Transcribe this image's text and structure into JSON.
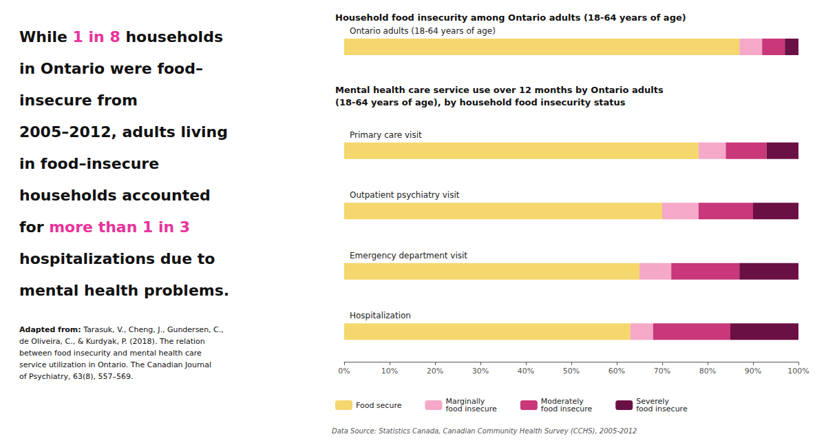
{
  "chart_data": {
    "type": "bar",
    "orientation": "horizontal",
    "stacked": true,
    "title": "Household food insecurity among Ontario adults (18-64 years of age)",
    "subtitle": "Mental health care service use over 12 months by Ontario adults\n(18-64 years of age), by household food insecurity status",
    "categories": [
      "Ontario adults (18-64 years of age)",
      "Primary care visit",
      "Outpatient psychiatry visit",
      "Emergency department visit",
      "Hospitalization"
    ],
    "series": [
      {
        "name": "Food secure",
        "color": "#F5D76E",
        "values": [
          87,
          78,
          70,
          65,
          63
        ]
      },
      {
        "name": "Marginally\nfood insecure",
        "color": "#F5A8C8",
        "values": [
          5,
          6,
          8,
          7,
          5
        ]
      },
      {
        "name": "Moderately\nfood insecure",
        "color": "#C8387A",
        "values": [
          5,
          9,
          12,
          15,
          17
        ]
      },
      {
        "name": "Severely\nfood insecure",
        "color": "#6B1045",
        "values": [
          3,
          7,
          10,
          13,
          15
        ]
      }
    ],
    "xlim": [
      0,
      100
    ],
    "xticks": [
      {
        "value": 0,
        "label": "0%"
      },
      {
        "value": 10,
        "label": "10%"
      },
      {
        "value": 20,
        "label": "20%"
      },
      {
        "value": 30,
        "label": "30%"
      },
      {
        "value": 40,
        "label": "40%"
      },
      {
        "value": 50,
        "label": "50%"
      },
      {
        "value": 60,
        "label": "60%"
      },
      {
        "value": 70,
        "label": "70%"
      },
      {
        "value": 80,
        "label": "80%"
      },
      {
        "value": 90,
        "label": "90%"
      },
      {
        "value": 100,
        "label": "100%"
      }
    ],
    "grid": false,
    "legend": "bottom",
    "annotations": [
      {
        "text": "While 1 in 8 households\nin Ontario were food–\ninsecure from\n2005–2012, adults living\nin food–insecure\nhouseholds accounted\nfor more than 1 in 3\nhospitalizations due to\nmental health problems.",
        "highlights": [
          "1 in 8",
          "more than 1 in 3"
        ],
        "color": "#E8339A"
      },
      {
        "text": "Adapted from: Tarasuk, V., Cheng, J., Gundersen, C.,\nde Oliveira, C., & Kurdyak, P. (2018). The relation\nbetween food insecurity and mental health care\nservice utilization in Ontario. The Canadian Journal\nof Psychiatry, 63(8), 557–569.",
        "highlights": [
          "Adapted from:"
        ]
      },
      {
        "text": "Data Source: Statistics Canada, Canadian Community Health Survey (CCHS), 2005-2012"
      }
    ]
  }
}
